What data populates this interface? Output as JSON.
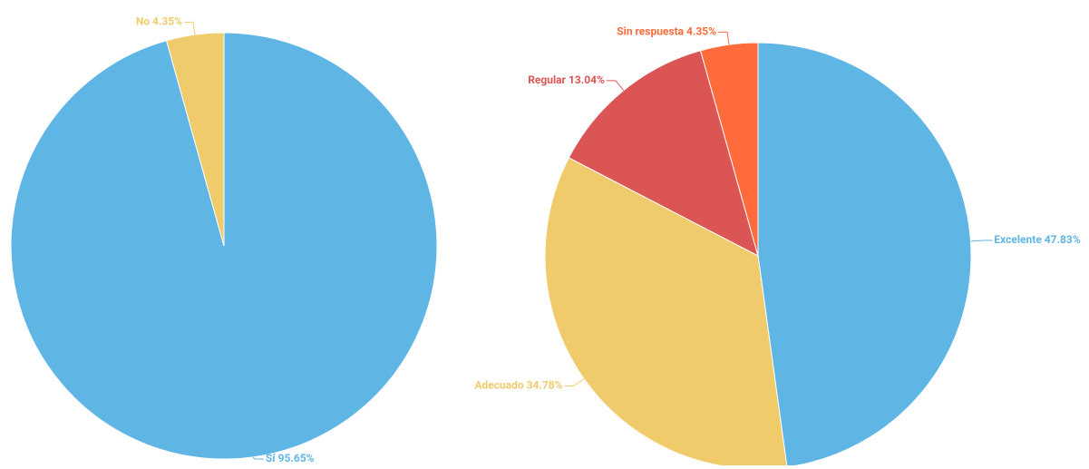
{
  "chart_data": [
    {
      "type": "pie",
      "categories": [
        "Sí",
        "No"
      ],
      "values": [
        95.65,
        4.35
      ],
      "value_labels": [
        "95.65%",
        "4.35%"
      ],
      "colors": [
        "#5fb6e5",
        "#efcb6b"
      ]
    },
    {
      "type": "pie",
      "categories": [
        "Excelente",
        "Adecuado",
        "Regular",
        "Sin respuesta"
      ],
      "values": [
        47.83,
        34.78,
        13.04,
        4.35
      ],
      "value_labels": [
        "47.83%",
        "34.78%",
        "13.04%",
        "4.35%"
      ],
      "colors": [
        "#5fb6e5",
        "#efcb6b",
        "#dc5555",
        "#ff6b3a"
      ]
    }
  ]
}
